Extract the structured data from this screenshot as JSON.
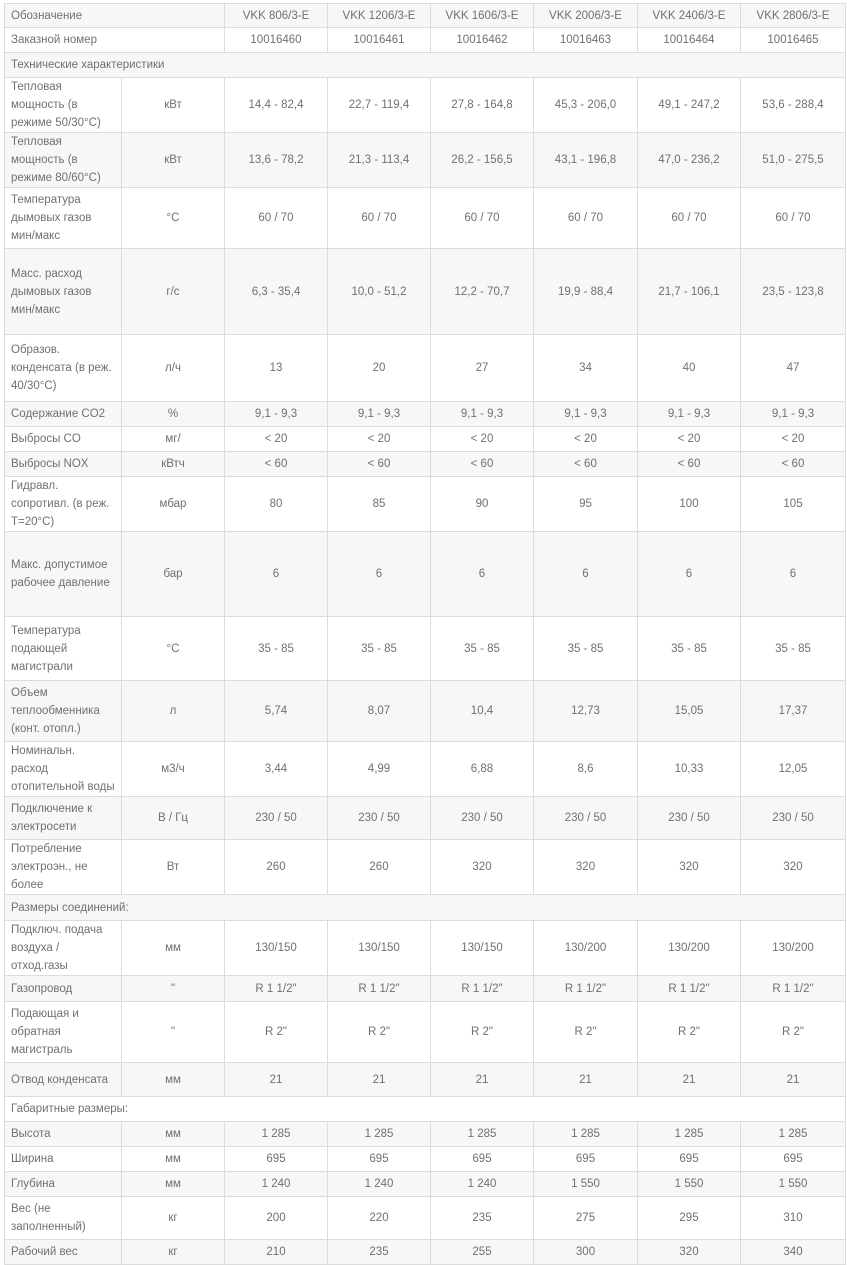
{
  "table": {
    "header": {
      "label": "Обозначение",
      "models": [
        "VKK 806/3-E",
        "VKK 1206/3-E",
        "VKK 1606/3-E",
        "VKK 2006/3-E",
        "VKK 2406/3-E",
        "VKK 2806/3-E"
      ]
    },
    "order": {
      "label": "Заказной номер",
      "values": [
        "10016460",
        "10016461",
        "10016462",
        "10016463",
        "10016464",
        "10016465"
      ]
    },
    "rows": [
      {
        "section": "Технические характеристики"
      },
      {
        "label": "Тепловая мощность (в режиме 50/30°C)",
        "unit": "кВт",
        "values": [
          "14,4 - 82,4",
          "22,7 - 119,4",
          "27,8 - 164,8",
          "45,3 - 206,0",
          "49,1 - 247,2",
          "53,6 - 288,4"
        ]
      },
      {
        "label": "Тепловая мощность (в режиме 80/60°C)",
        "unit": "кВт",
        "values": [
          "13,6 - 78,2",
          "21,3 - 113,4",
          "26,2 - 156,5",
          "43,1 - 196,8",
          "47,0 - 236,2",
          "51,0 - 275,5"
        ]
      },
      {
        "label": "Температура дымовых газов мин/макс",
        "unit": "°C",
        "values": [
          "60 / 70",
          "60 / 70",
          "60 / 70",
          "60 / 70",
          "60 / 70",
          "60 / 70"
        ]
      },
      {
        "label": "Масс. расход дымовых газов мин/макс",
        "unit": "г/с",
        "values": [
          "6,3 - 35,4",
          "10,0 - 51,2",
          "12,2 - 70,7",
          "19,9 - 88,4",
          "21,7 - 106,1",
          "23,5 - 123,8"
        ]
      },
      {
        "label": "Образов. конденсата (в реж. 40/30°C)",
        "unit": "л/ч",
        "values": [
          "13",
          "20",
          "27",
          "34",
          "40",
          "47"
        ]
      },
      {
        "label": "Содержание CO2",
        "unit": "%",
        "values": [
          "9,1 - 9,3",
          "9,1 - 9,3",
          "9,1 - 9,3",
          "9,1 - 9,3",
          "9,1 - 9,3",
          "9,1 - 9,3"
        ]
      },
      {
        "label": "Выбросы CO",
        "unit": "мг/",
        "values": [
          "< 20",
          "< 20",
          "< 20",
          "< 20",
          "< 20",
          "< 20"
        ]
      },
      {
        "label": "Выбросы NOX",
        "unit": "кВтч",
        "values": [
          "< 60",
          "< 60",
          "< 60",
          "< 60",
          "< 60",
          "< 60"
        ]
      },
      {
        "label": "Гидравл. сопротивл. (в реж. T=20°C)",
        "unit": "мбар",
        "values": [
          "80",
          "85",
          "90",
          "95",
          "100",
          "105"
        ]
      },
      {
        "label": "Макс. допустимое рабочее давление",
        "unit": "бар",
        "values": [
          "6",
          "6",
          "6",
          "6",
          "6",
          "6"
        ]
      },
      {
        "label": "Температура подающей магистрали",
        "unit": "°C",
        "values": [
          "35 - 85",
          "35 - 85",
          "35 - 85",
          "35 - 85",
          "35 - 85",
          "35 - 85"
        ]
      },
      {
        "label": "Объем теплообменника (конт. отопл.)",
        "unit": "л",
        "values": [
          "5,74",
          "8,07",
          "10,4",
          "12,73",
          "15,05",
          "17,37"
        ]
      },
      {
        "label": "Номинальн. расход отопительной воды",
        "unit": "м3/ч",
        "values": [
          "3,44",
          "4,99",
          "6,88",
          "8,6",
          "10,33",
          "12,05"
        ]
      },
      {
        "label": "Подключение к электросети",
        "unit": "В / Гц",
        "values": [
          "230 / 50",
          "230 / 50",
          "230 / 50",
          "230 / 50",
          "230 / 50",
          "230 / 50"
        ]
      },
      {
        "label": "Потребление электроэн., не более",
        "unit": "Вт",
        "values": [
          "260",
          "260",
          "320",
          "320",
          "320",
          "320"
        ]
      },
      {
        "section": "Размеры соединений:"
      },
      {
        "label": "Подключ. подача воздуха / отход.газы",
        "unit": "мм",
        "values": [
          "130/150",
          "130/150",
          "130/150",
          "130/200",
          "130/200",
          "130/200"
        ]
      },
      {
        "label": "Газопровод",
        "unit": "\"",
        "values": [
          "R 1 1/2\"",
          "R 1 1/2\"",
          "R 1 1/2\"",
          "R 1 1/2\"",
          "R 1 1/2\"",
          "R 1 1/2\""
        ]
      },
      {
        "label": "Подающая и обратная магистраль",
        "unit": "\"",
        "values": [
          "R 2\"",
          "R 2\"",
          "R 2\"",
          "R 2\"",
          "R 2\"",
          "R 2\""
        ]
      },
      {
        "label": "Отвод конденсата",
        "unit": "мм",
        "values": [
          "21",
          "21",
          "21",
          "21",
          "21",
          "21"
        ]
      },
      {
        "section": "Габаритные размеры:"
      },
      {
        "label": "Высота",
        "unit": "мм",
        "values": [
          "1 285",
          "1 285",
          "1 285",
          "1 285",
          "1 285",
          "1 285"
        ]
      },
      {
        "label": "Ширина",
        "unit": "мм",
        "values": [
          "695",
          "695",
          "695",
          "695",
          "695",
          "695"
        ]
      },
      {
        "label": "Глубина",
        "unit": "мм",
        "values": [
          "1 240",
          "1 240",
          "1 240",
          "1 550",
          "1 550",
          "1 550"
        ]
      },
      {
        "label": "Вес (не заполненный)",
        "unit": "кг",
        "values": [
          "200",
          "220",
          "235",
          "275",
          "295",
          "310"
        ]
      },
      {
        "label": "Рабочий вес",
        "unit": "кг",
        "values": [
          "210",
          "235",
          "255",
          "300",
          "320",
          "340"
        ]
      }
    ]
  }
}
